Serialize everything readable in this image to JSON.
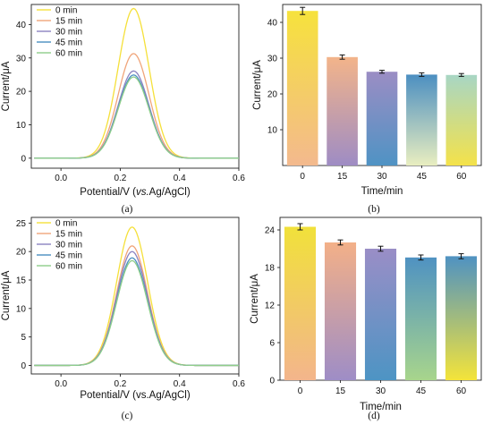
{
  "chart_data": [
    {
      "panel": "(a)",
      "type": "line",
      "xlabel_parts": [
        "Potential/V (",
        "vs.",
        "Ag/AgCl)"
      ],
      "ylabel": "Current/μA",
      "xlim": [
        -0.1,
        0.6
      ],
      "ylim": [
        -3,
        46
      ],
      "xticks": [
        0.0,
        0.2,
        0.4,
        0.6
      ],
      "yticks": [
        0,
        10,
        20,
        30,
        40
      ],
      "tick_labels_x": [
        "0.0",
        "0.2",
        "0.4",
        "0.6"
      ],
      "tick_labels_y": [
        "0",
        "10",
        "20",
        "30",
        "40"
      ],
      "legend_position": "top-left",
      "peak_x": 0.245,
      "series": [
        {
          "name": "0 min",
          "peak": 44.8,
          "color": "#f5e03a"
        },
        {
          "name": "15 min",
          "peak": 31.3,
          "color": "#f0a57a"
        },
        {
          "name": "30 min",
          "peak": 26.1,
          "color": "#8c82c0"
        },
        {
          "name": "45 min",
          "peak": 24.9,
          "color": "#4a8fc0"
        },
        {
          "name": "60 min",
          "peak": 24.3,
          "color": "#8fce8a"
        }
      ]
    },
    {
      "panel": "(b)",
      "type": "bar",
      "xlabel": "Time/min",
      "ylabel": "Current/μA",
      "categories": [
        "0",
        "15",
        "30",
        "45",
        "60"
      ],
      "values": [
        43.2,
        30.3,
        26.2,
        25.4,
        25.3
      ],
      "errors": [
        1.0,
        0.6,
        0.4,
        0.5,
        0.4
      ],
      "ylim": [
        0,
        45
      ],
      "yticks": [
        10,
        20,
        30,
        40
      ],
      "tick_labels_y": [
        "10",
        "20",
        "30",
        "40"
      ]
    },
    {
      "panel": "(c)",
      "type": "line",
      "xlabel": "Potential/V (vs.Ag/AgCl)",
      "ylabel": "Current/μA",
      "xlim": [
        -0.1,
        0.6
      ],
      "ylim": [
        -1.5,
        26
      ],
      "xticks": [
        0.0,
        0.2,
        0.4,
        0.6
      ],
      "yticks": [
        0,
        5,
        10,
        15,
        20,
        25
      ],
      "tick_labels_x": [
        "0.0",
        "0.2",
        "0.4",
        "0.6"
      ],
      "tick_labels_y": [
        "0",
        "5",
        "10",
        "15",
        "20",
        "25"
      ],
      "legend_position": "top-left",
      "peak_x": 0.24,
      "series": [
        {
          "name": "0 min",
          "peak": 24.3,
          "color": "#f5e03a"
        },
        {
          "name": "15 min",
          "peak": 21.0,
          "color": "#f0a57a"
        },
        {
          "name": "30 min",
          "peak": 20.0,
          "color": "#8c82c0"
        },
        {
          "name": "45 min",
          "peak": 18.9,
          "color": "#4a8fc0"
        },
        {
          "name": "60 min",
          "peak": 18.4,
          "color": "#8fce8a"
        }
      ]
    },
    {
      "panel": "(d)",
      "type": "bar",
      "xlabel": "Time/min",
      "ylabel": "Current/μA",
      "categories": [
        "0",
        "15",
        "30",
        "45",
        "60"
      ],
      "values": [
        24.5,
        22.0,
        21.0,
        19.6,
        19.8
      ],
      "errors": [
        0.5,
        0.4,
        0.4,
        0.4,
        0.4
      ],
      "ylim": [
        0,
        26
      ],
      "yticks": [
        0,
        6,
        12,
        18,
        24
      ],
      "tick_labels_y": [
        "0",
        "6",
        "12",
        "18",
        "24"
      ]
    }
  ]
}
